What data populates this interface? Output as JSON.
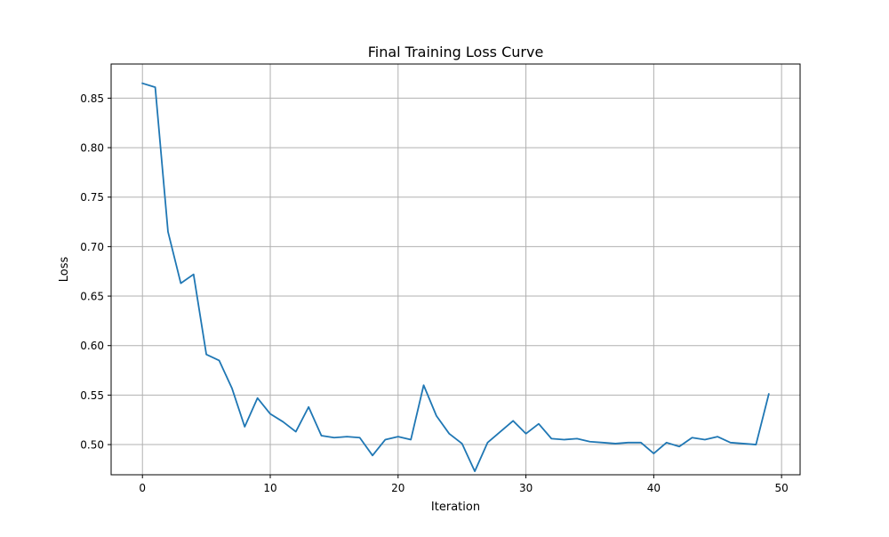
{
  "chart_data": {
    "type": "line",
    "title": "Final Training Loss Curve",
    "xlabel": "Iteration",
    "ylabel": "Loss",
    "xlim": [
      -2.45,
      51.45
    ],
    "ylim": [
      0.4695,
      0.8845
    ],
    "x_ticks": [
      0,
      10,
      20,
      30,
      40,
      50
    ],
    "y_ticks": [
      0.5,
      0.55,
      0.6,
      0.65,
      0.7,
      0.75,
      0.8,
      0.85
    ],
    "grid": true,
    "legend": "none",
    "series": [
      {
        "color": "#1f77b4",
        "x": [
          0,
          1,
          2,
          3,
          4,
          5,
          6,
          7,
          8,
          9,
          10,
          11,
          12,
          13,
          14,
          15,
          16,
          17,
          18,
          19,
          20,
          21,
          22,
          23,
          24,
          25,
          26,
          27,
          28,
          29,
          30,
          31,
          32,
          33,
          34,
          35,
          36,
          37,
          38,
          39,
          40,
          41,
          42,
          43,
          44,
          45,
          46,
          47,
          48,
          49
        ],
        "values": [
          0.865,
          0.861,
          0.715,
          0.663,
          0.672,
          0.591,
          0.585,
          0.557,
          0.518,
          0.547,
          0.531,
          0.523,
          0.513,
          0.538,
          0.509,
          0.507,
          0.508,
          0.507,
          0.489,
          0.505,
          0.508,
          0.505,
          0.56,
          0.529,
          0.511,
          0.501,
          0.473,
          0.502,
          0.513,
          0.524,
          0.511,
          0.521,
          0.506,
          0.505,
          0.506,
          0.503,
          0.502,
          0.501,
          0.502,
          0.502,
          0.491,
          0.502,
          0.498,
          0.507,
          0.505,
          0.508,
          0.502,
          0.501,
          0.5,
          0.551
        ]
      }
    ]
  }
}
